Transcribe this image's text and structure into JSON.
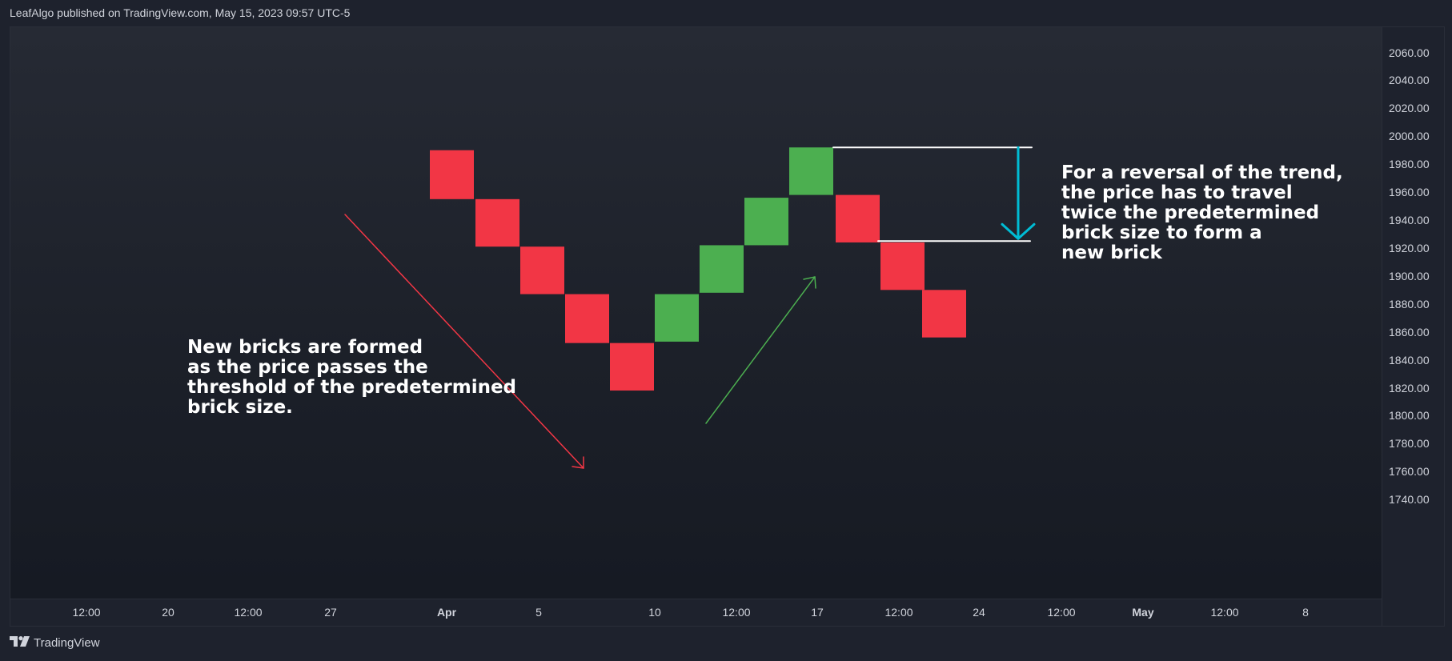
{
  "header": {
    "publisher_line": "LeafAlgo published on TradingView.com, May 15, 2023 09:57 UTC-5"
  },
  "footer": {
    "brand": "TradingView",
    "logo_icon": "tradingview-logo-icon"
  },
  "colors": {
    "up": "#4caf50",
    "down": "#f23645",
    "annotation_down_arrow": "#f23645",
    "annotation_up_arrow": "#4caf50",
    "measure_arrow": "#00bcd4",
    "measure_lines": "#ffffff"
  },
  "annotations": {
    "left_text": "New bricks are formed\nas the price passes the\nthreshold of the predetermined\nbrick size.",
    "right_text": "For a reversal of the trend,\nthe price has to travel\ntwice the predetermined\nbrick size to form a\nnew brick"
  },
  "chart_data": {
    "type": "renko",
    "brick_size": 35,
    "price_axis": {
      "position": "right",
      "ylim": [
        1725,
        2070
      ],
      "ticks": [
        2060,
        2040,
        2020,
        2000,
        1980,
        1960,
        1940,
        1920,
        1900,
        1880,
        1860,
        1840,
        1820,
        1800,
        1780,
        1760,
        1740
      ],
      "tick_labels": [
        "2060.00",
        "2040.00",
        "2020.00",
        "2000.00",
        "1980.00",
        "1960.00",
        "1940.00",
        "1920.00",
        "1900.00",
        "1880.00",
        "1860.00",
        "1840.00",
        "1820.00",
        "1800.00",
        "1780.00",
        "1760.00",
        "1740.00"
      ]
    },
    "time_axis": {
      "labels": [
        {
          "text": "12:00",
          "bold": false
        },
        {
          "text": "20",
          "bold": false
        },
        {
          "text": "12:00",
          "bold": false
        },
        {
          "text": "27",
          "bold": false
        },
        {
          "text": "Apr",
          "bold": true
        },
        {
          "text": "5",
          "bold": false
        },
        {
          "text": "10",
          "bold": false
        },
        {
          "text": "12:00",
          "bold": false
        },
        {
          "text": "17",
          "bold": false
        },
        {
          "text": "12:00",
          "bold": false
        },
        {
          "text": "24",
          "bold": false
        },
        {
          "text": "12:00",
          "bold": false
        },
        {
          "text": "May",
          "bold": true
        },
        {
          "text": "12:00",
          "bold": false
        },
        {
          "text": "8",
          "bold": false
        }
      ]
    },
    "bricks": [
      {
        "direction": "down",
        "high": 1990,
        "low": 1955
      },
      {
        "direction": "down",
        "high": 1955,
        "low": 1921
      },
      {
        "direction": "down",
        "high": 1921,
        "low": 1887
      },
      {
        "direction": "down",
        "high": 1887,
        "low": 1852
      },
      {
        "direction": "down",
        "high": 1852,
        "low": 1818
      },
      {
        "direction": "up",
        "high": 1887,
        "low": 1853
      },
      {
        "direction": "up",
        "high": 1922,
        "low": 1888
      },
      {
        "direction": "up",
        "high": 1956,
        "low": 1922
      },
      {
        "direction": "up",
        "high": 1992,
        "low": 1958
      },
      {
        "direction": "down",
        "high": 1958,
        "low": 1924
      },
      {
        "direction": "down",
        "high": 1924,
        "low": 1890
      },
      {
        "direction": "down",
        "high": 1890,
        "low": 1856
      }
    ],
    "measure": {
      "from_price": 1992,
      "to_price": 1925
    }
  }
}
